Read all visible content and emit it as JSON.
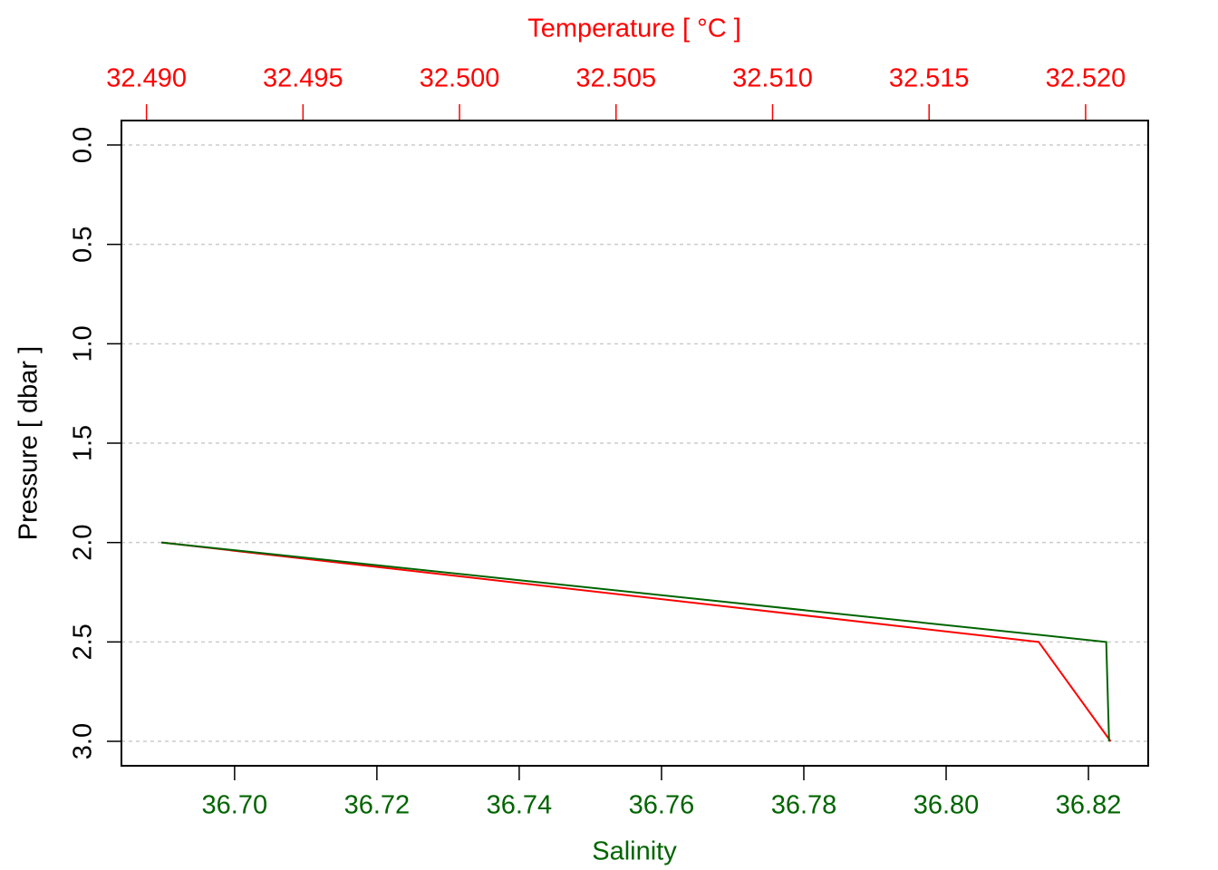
{
  "chart_data": {
    "type": "line",
    "x2label": "Temperature [ °C ]",
    "xlabel": "Salinity",
    "ylabel": "Pressure [ dbar ]",
    "pressure": [
      2.0,
      2.5,
      3.0
    ],
    "series": [
      {
        "color": "#ff0000",
        "axis": "x2",
        "values": [
          32.4905,
          32.5185,
          32.5208
        ]
      },
      {
        "color": "#006400",
        "axis": "x",
        "values": [
          36.6897,
          36.8225,
          36.8229
        ]
      }
    ],
    "xlim": [
      36.6841,
      36.8284
    ],
    "xticks": [
      {
        "value": 36.7,
        "label": "36.70"
      },
      {
        "value": 36.72,
        "label": "36.72"
      },
      {
        "value": 36.74,
        "label": "36.74"
      },
      {
        "value": 36.76,
        "label": "36.76"
      },
      {
        "value": 36.78,
        "label": "36.78"
      },
      {
        "value": 36.8,
        "label": "36.80"
      },
      {
        "value": 36.82,
        "label": "36.82"
      }
    ],
    "x2lim": [
      32.4892,
      32.522
    ],
    "x2ticks": [
      {
        "value": 32.49,
        "label": "32.490"
      },
      {
        "value": 32.495,
        "label": "32.495"
      },
      {
        "value": 32.5,
        "label": "32.500"
      },
      {
        "value": 32.505,
        "label": "32.505"
      },
      {
        "value": 32.51,
        "label": "32.510"
      },
      {
        "value": 32.515,
        "label": "32.515"
      },
      {
        "value": 32.52,
        "label": "32.520"
      }
    ],
    "ylim": [
      3.123,
      -0.123
    ],
    "yticks": [
      {
        "value": 0,
        "label": "0.0"
      },
      {
        "value": 0.5,
        "label": "0.5"
      },
      {
        "value": 1,
        "label": "1.0"
      },
      {
        "value": 1.5,
        "label": "1.5"
      },
      {
        "value": 2,
        "label": "2.0"
      },
      {
        "value": 2.5,
        "label": "2.5"
      },
      {
        "value": 3,
        "label": "3.0"
      }
    ],
    "grid": true
  }
}
